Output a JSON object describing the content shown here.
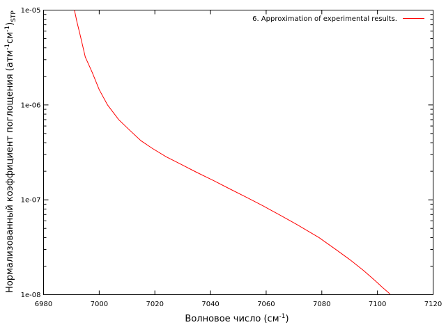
{
  "chart_data": {
    "type": "line",
    "xlabel_main": "Волновое число (см",
    "xlabel_sup": "-1",
    "xlabel_close": ")",
    "ylabel_main": "Нормализованный коэффициент поглощения (атм",
    "ylabel_sup1": "-1",
    "ylabel_mid": "см",
    "ylabel_sup2": "-1",
    "ylabel_close": ")",
    "ylabel_sub": "STP",
    "xlim": [
      6980,
      7120
    ],
    "ylim": [
      1e-08,
      1e-05
    ],
    "yscale": "log",
    "x_ticks": [
      "6980",
      "7000",
      "7020",
      "7040",
      "7060",
      "7080",
      "7100",
      "7120"
    ],
    "y_ticks": [
      "1e-08",
      "1e-07",
      "1e-06",
      "1e-05"
    ],
    "legend_position": "top-right",
    "series": [
      {
        "name": "6. Approximation of experimental results.",
        "color": "#ff0000",
        "x": [
          6991.1,
          6992.0,
          6993.0,
          6995.0,
          6997.5,
          7000.0,
          7003.0,
          7007.0,
          7011.0,
          7015.0,
          7019.0,
          7024.0,
          7029.0,
          7035.0,
          7041.0,
          7047.0,
          7053.0,
          7059.0,
          7065.0,
          7071.0,
          7079.0,
          7085.0,
          7090.0,
          7095.0,
          7099.0,
          7102.0,
          7104.5
        ],
        "y": [
          1e-05,
          7.5e-06,
          5.7e-06,
          3.2e-06,
          2.2e-06,
          1.45e-06,
          1e-06,
          7e-07,
          5.4e-07,
          4.2e-07,
          3.5e-07,
          2.85e-07,
          2.4e-07,
          1.95e-07,
          1.6e-07,
          1.3e-07,
          1.06e-07,
          8.6e-08,
          6.9e-08,
          5.5e-08,
          4e-08,
          3e-08,
          2.35e-08,
          1.8e-08,
          1.42e-08,
          1.18e-08,
          1.02e-08
        ]
      }
    ]
  }
}
